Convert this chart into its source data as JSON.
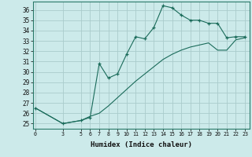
{
  "xlabel": "Humidex (Indice chaleur)",
  "background_color": "#cceaea",
  "line_color": "#1a6b5a",
  "grid_color": "#aacccc",
  "x_ticks": [
    0,
    3,
    5,
    6,
    7,
    8,
    9,
    10,
    11,
    12,
    13,
    14,
    15,
    16,
    17,
    18,
    19,
    20,
    21,
    22,
    23
  ],
  "xlim": [
    -0.3,
    23.5
  ],
  "ylim": [
    24.5,
    36.8
  ],
  "yticks": [
    25,
    26,
    27,
    28,
    29,
    30,
    31,
    32,
    33,
    34,
    35,
    36
  ],
  "line1_x": [
    0,
    3,
    5,
    6,
    7,
    8,
    9,
    10,
    11,
    12,
    13,
    14,
    15,
    16,
    17,
    18,
    19,
    20,
    21,
    22,
    23
  ],
  "line1_y": [
    26.5,
    25.0,
    25.3,
    25.6,
    30.8,
    29.4,
    29.8,
    31.7,
    33.4,
    33.2,
    34.3,
    36.4,
    36.2,
    35.5,
    35.0,
    35.0,
    34.7,
    34.7,
    33.3,
    33.4,
    33.4
  ],
  "line2_x": [
    0,
    3,
    5,
    6,
    7,
    8,
    9,
    10,
    11,
    12,
    13,
    14,
    15,
    16,
    17,
    18,
    19,
    20,
    21,
    22,
    23
  ],
  "line2_y": [
    26.5,
    25.0,
    25.3,
    25.7,
    26.0,
    26.7,
    27.5,
    28.3,
    29.1,
    29.8,
    30.5,
    31.2,
    31.7,
    32.1,
    32.4,
    32.6,
    32.8,
    32.1,
    32.1,
    33.1,
    33.3
  ]
}
